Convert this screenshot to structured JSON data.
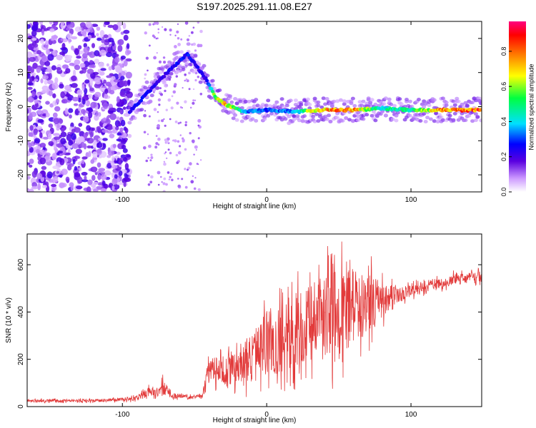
{
  "title": "S197.2025.291.11.08.E27",
  "colors": {
    "snr_line": "#e23a3a",
    "axis": "#000000",
    "background": "#ffffff"
  },
  "chart_data": [
    {
      "type": "heatmap",
      "title": "S197.2025.291.11.08.E27",
      "xlabel": "Height of straight line (km)",
      "ylabel": "Frequency (Hz)",
      "xlim": [
        -166,
        149
      ],
      "ylim": [
        -25,
        25
      ],
      "xticks": [
        -100,
        0,
        100
      ],
      "xtick_labels": [
        "-100",
        "0",
        "100"
      ],
      "yticks": [
        -20,
        -10,
        0,
        10,
        20
      ],
      "ytick_labels": [
        "-20",
        "-10",
        "0",
        "10",
        "20"
      ],
      "colorbar": {
        "label": "Normalized spectral amplitude",
        "range": [
          0,
          0.97
        ],
        "ticks": [
          0.0,
          0.2,
          0.4,
          0.6,
          0.8
        ],
        "tick_labels": [
          "0.0",
          "0.2",
          "0.4",
          "0.6",
          "0.8"
        ],
        "colormap": "rainbow (white-violet-blue-cyan-green-yellow-orange-red-magenta)"
      },
      "ridge": [
        {
          "x": -95,
          "freq": -1.5,
          "amp": 0.25
        },
        {
          "x": -88,
          "freq": 1.5,
          "amp": 0.3
        },
        {
          "x": -75,
          "freq": 7.5,
          "amp": 0.25
        },
        {
          "x": -55,
          "freq": 15.5,
          "amp": 0.3
        },
        {
          "x": -42,
          "freq": 8,
          "amp": 0.22
        },
        {
          "x": -35,
          "freq": 2.5,
          "amp": 0.75
        },
        {
          "x": -28,
          "freq": 0.5,
          "amp": 0.8
        },
        {
          "x": -15,
          "freq": -1.5,
          "amp": 0.4
        },
        {
          "x": 0,
          "freq": -1,
          "amp": 0.35
        },
        {
          "x": 20,
          "freq": -1.5,
          "amp": 0.4
        },
        {
          "x": 35,
          "freq": -1,
          "amp": 0.85
        },
        {
          "x": 60,
          "freq": -1,
          "amp": 0.85
        },
        {
          "x": 80,
          "freq": -0.5,
          "amp": 0.5
        },
        {
          "x": 100,
          "freq": -1,
          "amp": 0.55
        },
        {
          "x": 120,
          "freq": -1,
          "amp": 0.85
        },
        {
          "x": 149,
          "freq": -1,
          "amp": 0.95
        }
      ],
      "noise_region_x": [
        -166,
        -95
      ]
    },
    {
      "type": "line",
      "xlabel": "Height of straight line (km)",
      "ylabel": "SNR (10 * v/v)",
      "xlim": [
        -166,
        149
      ],
      "ylim": [
        0,
        730
      ],
      "xticks": [
        -100,
        0,
        100
      ],
      "xtick_labels": [
        "-100",
        "0",
        "100"
      ],
      "yticks": [
        0,
        200,
        400,
        600
      ],
      "ytick_labels": [
        "0",
        "200",
        "400",
        "600"
      ],
      "series": [
        {
          "name": "SNR",
          "x": [
            -166,
            -140,
            -120,
            -100,
            -90,
            -82,
            -75,
            -72,
            -65,
            -55,
            -45,
            -40,
            -35,
            -30,
            -20,
            -10,
            0,
            10,
            20,
            30,
            40,
            50,
            60,
            70,
            80,
            90,
            100,
            110,
            120,
            130,
            140,
            149
          ],
          "mean": [
            25,
            25,
            25,
            30,
            35,
            60,
            55,
            80,
            45,
            40,
            40,
            150,
            150,
            140,
            180,
            210,
            250,
            280,
            330,
            340,
            380,
            390,
            420,
            430,
            450,
            470,
            490,
            510,
            520,
            540,
            545,
            550
          ],
          "amplitude": [
            10,
            10,
            10,
            12,
            18,
            35,
            30,
            60,
            20,
            15,
            15,
            80,
            110,
            90,
            130,
            180,
            220,
            230,
            260,
            280,
            300,
            320,
            260,
            230,
            120,
            70,
            40,
            40,
            40,
            40,
            40,
            40
          ]
        }
      ]
    }
  ]
}
